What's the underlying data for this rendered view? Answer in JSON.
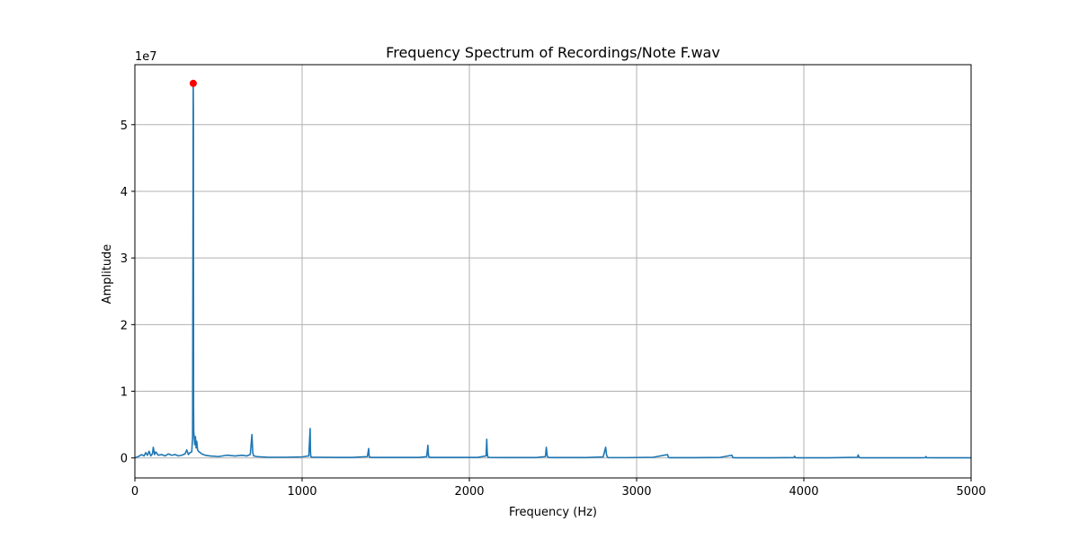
{
  "chart_data": {
    "type": "line",
    "title": "Frequency Spectrum of Recordings/Note F.wav",
    "xlabel": "Frequency (Hz)",
    "ylabel": "Amplitude",
    "y_offset_label": "1e7",
    "y_multiplier": 10000000,
    "xlim": [
      0,
      5000
    ],
    "ylim": [
      -3000000,
      59000000
    ],
    "x_ticks": [
      0,
      1000,
      2000,
      3000,
      4000,
      5000
    ],
    "x_tick_labels": [
      "0",
      "1000",
      "2000",
      "3000",
      "4000",
      "5000"
    ],
    "y_ticks": [
      0,
      10000000,
      20000000,
      30000000,
      40000000,
      50000000
    ],
    "y_tick_labels": [
      "0",
      "1",
      "2",
      "3",
      "4",
      "5"
    ],
    "grid": true,
    "series": [
      {
        "color": "#1f77b4",
        "x": [
          0,
          20,
          40,
          55,
          65,
          75,
          85,
          95,
          105,
          110,
          118,
          125,
          140,
          160,
          180,
          200,
          220,
          240,
          260,
          280,
          300,
          310,
          320,
          330,
          340,
          345,
          349,
          350,
          351,
          352,
          355,
          358,
          362,
          366,
          370,
          375,
          380,
          390,
          400,
          420,
          450,
          500,
          550,
          600,
          640,
          670,
          690,
          700,
          705,
          710,
          730,
          760,
          800,
          900,
          1000,
          1040,
          1048,
          1050,
          1052,
          1060,
          1100,
          1200,
          1300,
          1390,
          1398,
          1400,
          1402,
          1410,
          1500,
          1600,
          1700,
          1745,
          1752,
          1755,
          1758,
          1765,
          1850,
          1950,
          2050,
          2100,
          2104,
          2107,
          2110,
          2113,
          2120,
          2200,
          2300,
          2400,
          2455,
          2460,
          2465,
          2470,
          2480,
          2600,
          2700,
          2800,
          2815,
          2820,
          2825,
          2830,
          2840,
          2950,
          3100,
          3185,
          3190,
          3195,
          3205,
          3350,
          3500,
          3570,
          3575,
          3580,
          3600,
          3800,
          3940,
          3945,
          3950,
          3960,
          4150,
          4320,
          4325,
          4330,
          4340,
          4500,
          4700,
          4725,
          4730,
          4735,
          4800,
          5000
        ],
        "y": [
          0,
          200000,
          500000,
          300000,
          800000,
          400000,
          1000000,
          300000,
          600000,
          1600000,
          500000,
          900000,
          400000,
          500000,
          300000,
          600000,
          400000,
          500000,
          300000,
          400000,
          600000,
          1200000,
          500000,
          800000,
          900000,
          3000000,
          56000000,
          52000000,
          8000000,
          4000000,
          3000000,
          2000000,
          3200000,
          1500000,
          2500000,
          1200000,
          1000000,
          800000,
          600000,
          400000,
          300000,
          200000,
          400000,
          300000,
          400000,
          300000,
          500000,
          3500000,
          800000,
          300000,
          200000,
          150000,
          100000,
          100000,
          150000,
          300000,
          4400000,
          900000,
          200000,
          100000,
          100000,
          80000,
          80000,
          200000,
          1400000,
          500000,
          150000,
          80000,
          80000,
          80000,
          80000,
          200000,
          1900000,
          500000,
          150000,
          80000,
          80000,
          80000,
          80000,
          300000,
          2800000,
          700000,
          200000,
          100000,
          80000,
          60000,
          60000,
          60000,
          200000,
          1600000,
          400000,
          100000,
          60000,
          60000,
          60000,
          150000,
          1600000,
          500000,
          150000,
          60000,
          50000,
          50000,
          100000,
          500000,
          100000,
          50000,
          40000,
          40000,
          80000,
          400000,
          80000,
          40000,
          30000,
          30000,
          60000,
          250000,
          50000,
          30000,
          30000,
          100000,
          450000,
          80000,
          30000,
          20000,
          20000,
          50000,
          200000,
          40000,
          20000,
          20000
        ]
      }
    ],
    "peak_marker": {
      "x": 349,
      "y": 56200000,
      "color": "#ff0000"
    }
  }
}
